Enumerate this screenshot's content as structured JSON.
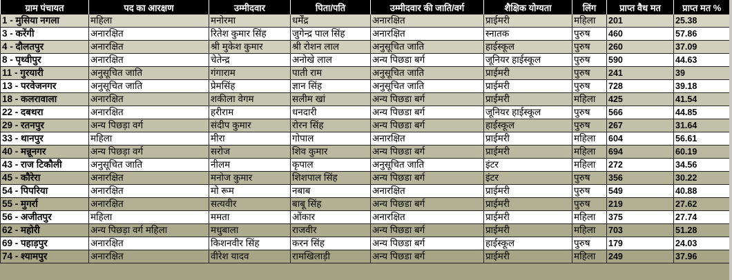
{
  "headers": [
    "ग्राम पंचायत",
    "पद का आरक्षण",
    "उम्मीदवार",
    "पिता/पति",
    "उम्मीदवार की जाति/वर्ग",
    "शैक्षिक योग्यता",
    "लिंग",
    "प्राप्त वैध मत",
    "प्राप्त मत %"
  ],
  "colors": {
    "header_bg": "#000000",
    "row_shade_start": "#d6d5c4",
    "row_shade_end": "#a6a585",
    "row_light": "#ffffff"
  },
  "rows": [
    [
      "1 - मुसिया नगला",
      "महिला",
      "मनोरमा",
      "धर्मेंद्र",
      "अनारक्षित",
      "प्राईमरी",
      "महिला",
      "201",
      "25.38"
    ],
    [
      "3 - करेंगी",
      "अनारक्षित",
      "रितेश कुमार सिंह",
      "जुगेन्द्र पाल सिंह",
      "अनारक्षित",
      "स्नातक",
      "पुरुष",
      "460",
      "57.86"
    ],
    [
      "4 - दौलतपुर",
      "अनारक्षित",
      "श्री मुकेश कुमार",
      "श्री रोशन लाल",
      "अनुसूचित जाति",
      "हाईस्कूल",
      "पुरुष",
      "260",
      "37.09"
    ],
    [
      "8 - पृथ्वीपुर",
      "अनारक्षित",
      "चेतेन्द्र",
      "अनोखे लाल",
      "अन्य पिछडा बर्ग",
      "जूनियर हाईस्कूल",
      "पुरुष",
      "590",
      "44.63"
    ],
    [
      "11 - गुरयारी",
      "अनुसूचित जाति",
      "गंगाराम",
      "पाती राम",
      "अनुसूचित जाति",
      "प्राईमरी",
      "पुरुष",
      "241",
      "39"
    ],
    [
      "13 - परवेजनगर",
      "अनुसूचित जाति",
      "प्रेमसिंह",
      "ज्ञान सिंह",
      "अनुसूचित जाति",
      "प्राईमरी",
      "पुरुष",
      "728",
      "39.18"
    ],
    [
      "18 - कलरावाला",
      "अनारक्षित",
      "शकीला वेगम",
      "सलीम खां",
      "अन्य पिछडा बर्ग",
      "प्राईमरी",
      "महिला",
      "425",
      "41.54"
    ],
    [
      "22 - दबथरा",
      "अनारक्षित",
      "हरीराम",
      "धनदारी",
      "अन्य पिछडा बर्ग",
      "जूनियर हाईस्कूल",
      "पुरुष",
      "566",
      "44.85"
    ],
    [
      "29 - रतनपुर",
      "अन्य पिछड़ा वर्ग",
      "संदीप कुमार",
      "रोरन सिंह",
      "अन्य पिछडा बर्ग",
      "हाईस्कूल",
      "पुरुष",
      "267",
      "31.64"
    ],
    [
      "33 - थानपुर",
      "महिला",
      "मीरा",
      "गोपाल",
      "अनारक्षित",
      "प्राईमरी",
      "महिला",
      "604",
      "56.61"
    ],
    [
      "40 - मन्नूनगर",
      "अन्य पिछड़ा वर्ग",
      "सरोज",
      "शिव कुमार",
      "अन्य पिछडा बर्ग",
      "प्राईमरी",
      "महिला",
      "694",
      "60.19"
    ],
    [
      "43 - राज टिकौली",
      "अनुसूचित जाति",
      "नीलम",
      "कृपाल",
      "अनुसूचित जाति",
      "इंटर",
      "महिला",
      "272",
      "34.56"
    ],
    [
      "45 - कौरेरा",
      "अनारक्षित",
      "मनोज कुमार",
      "शिशपाल सिंह",
      "अन्य पिछडा बर्ग",
      "इंटर",
      "पुरुष",
      "356",
      "30.22"
    ],
    [
      "54 - पिपरिया",
      "अनारक्षित",
      "मो रूम",
      "नबाब",
      "अनारक्षित",
      "प्राईमरी",
      "पुरुष",
      "549",
      "40.88"
    ],
    [
      "55 - मुगर्रा",
      "अनारक्षित",
      "सत्यवीर",
      "बाबू सिंह",
      "अन्य पिछडा बर्ग",
      "प्राईमरी",
      "पुरुष",
      "219",
      "27.62"
    ],
    [
      "56 - अजीतपुर",
      "महिला",
      "ममता",
      "ओंकार",
      "अनारक्षित",
      "प्राईमरी",
      "महिला",
      "375",
      "27.74"
    ],
    [
      "62 - महोरी",
      "अन्य पिछड़ा वर्ग महिला",
      "मधुबाला",
      "राजवीर",
      "अन्य पिछडा बर्ग",
      "प्राईमरी",
      "महिला",
      "703",
      "51.28"
    ],
    [
      "69 - पहाड़पुर",
      "अनारक्षित",
      "किशनवीर सिंह",
      "करन सिंह",
      "अन्य पिछडा बर्ग",
      "हाईस्कूल",
      "पुरुष",
      "179",
      "24.03"
    ],
    [
      "74 - श्यामपुर",
      "अनारक्षित",
      "वीरेश यादव",
      "रामखिलाड़ी",
      "अन्य पिछडा बर्ग",
      "प्राईमरी",
      "महिला",
      "249",
      "37.96"
    ]
  ]
}
